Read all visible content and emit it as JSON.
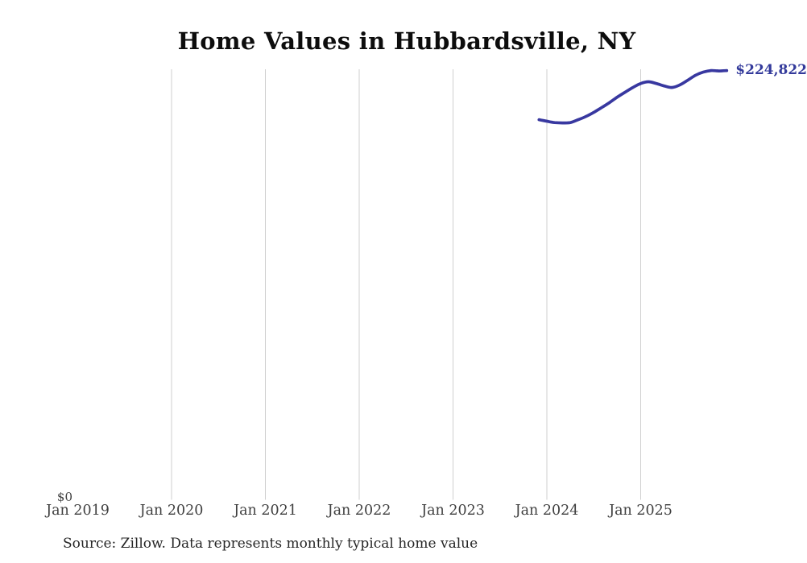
{
  "page": {
    "background": "#ffffff"
  },
  "header": {
    "title": "Home Values in Hubbardsville, NY"
  },
  "footer": {
    "source_note": "Source: Zillow. Data represents monthly typical home value"
  },
  "y_axis": {
    "zero_label": "$0"
  },
  "annotations": {
    "latest_value_label": "$224,822"
  },
  "colors": {
    "line": "#3838a0",
    "latest_label": "#333a9b",
    "gridline": "#cfcfcf",
    "axis_text": "#3f3f3f",
    "title_text": "#0d0d0d",
    "source_text": "#262626",
    "background": "#ffffff"
  },
  "chart_data": {
    "type": "line",
    "title": "Home Values in Hubbardsville, NY",
    "xlabel": "",
    "ylabel": "",
    "ylim": [
      0,
      225500
    ],
    "grid": "vertical-only",
    "legend": "none",
    "x_tick_labels": [
      "Jan 2019",
      "Jan 2020",
      "Jan 2021",
      "Jan 2022",
      "Jan 2023",
      "Jan 2024",
      "Jan 2025"
    ],
    "gridline_labels": [
      "Jan 2020",
      "Jan 2021",
      "Jan 2022",
      "Jan 2023",
      "Jan 2024",
      "Jan 2025"
    ],
    "y_tick_labels": [
      "$0"
    ],
    "last_point_label": "$224,822",
    "series": [
      {
        "name": "typical-home-value",
        "months": [
          "Dec 2023",
          "Jan 2024",
          "Feb 2024",
          "Mar 2024",
          "Apr 2024",
          "May 2024",
          "Jun 2024",
          "Jul 2024",
          "Aug 2024",
          "Sep 2024",
          "Oct 2024",
          "Nov 2024",
          "Dec 2024",
          "Jan 2025",
          "Feb 2025",
          "Mar 2025",
          "Apr 2025",
          "May 2025",
          "Jun 2025",
          "Jul 2025",
          "Aug 2025",
          "Sep 2025",
          "Oct 2025",
          "Nov 2025",
          "Dec 2025"
        ],
        "values": [
          198900,
          198100,
          197400,
          197200,
          197400,
          198900,
          200600,
          202800,
          205300,
          207900,
          210800,
          213400,
          215900,
          218000,
          218900,
          218000,
          216700,
          215900,
          217200,
          219700,
          222300,
          224000,
          224800,
          224600,
          224822
        ]
      }
    ]
  }
}
